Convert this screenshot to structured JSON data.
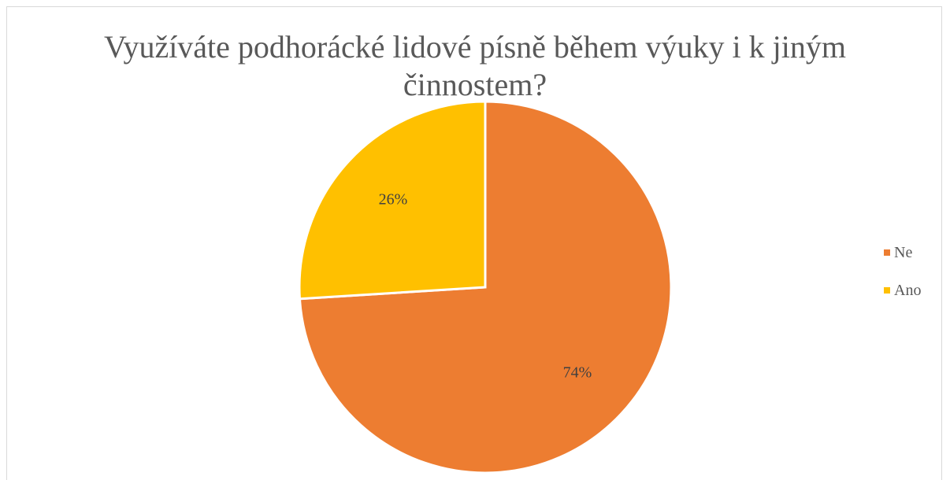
{
  "chart_data": {
    "type": "pie",
    "title_lines": [
      "Využíváte podhorácké lidové písně během výuky i k jiným",
      "činnostem?"
    ],
    "slices": [
      {
        "label": "Ne",
        "value": 74,
        "display": "74%",
        "color": "#ED7D31"
      },
      {
        "label": "Ano",
        "value": 26,
        "display": "26%",
        "color": "#FFC000"
      }
    ],
    "legend_position": "right",
    "data_labels": true
  }
}
